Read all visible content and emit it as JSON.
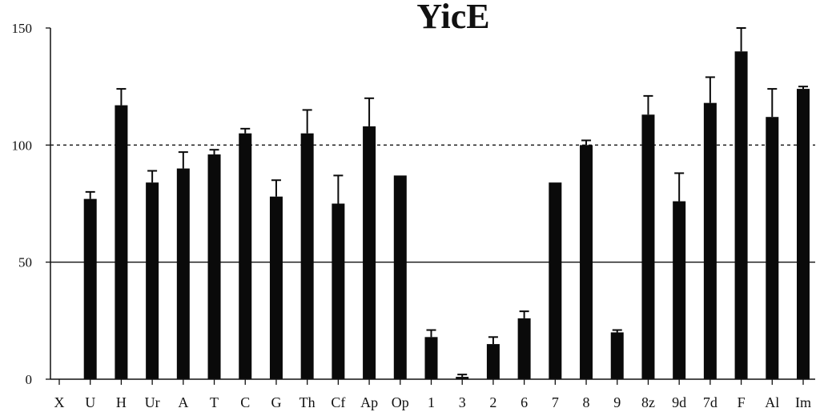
{
  "chart_data": {
    "type": "bar",
    "title": "YicE",
    "xlabel": "",
    "ylabel": "",
    "ylim": [
      0,
      150
    ],
    "yticks": [
      0,
      50,
      100,
      150
    ],
    "grid": false,
    "legend": "none",
    "reference_lines": [
      {
        "value": 100,
        "style": "dashed"
      },
      {
        "value": 50,
        "style": "solid"
      }
    ],
    "categories": [
      "X",
      "U",
      "H",
      "Ur",
      "A",
      "T",
      "C",
      "G",
      "Th",
      "Cf",
      "Ap",
      "Op",
      "1",
      "3",
      "2",
      "6",
      "7",
      "8",
      "9",
      "8z",
      "9d",
      "7d",
      "F",
      "Al",
      "Im"
    ],
    "values": [
      0,
      77,
      117,
      84,
      90,
      96,
      105,
      78,
      105,
      75,
      108,
      87,
      18,
      1,
      15,
      26,
      84,
      100,
      20,
      113,
      76,
      118,
      140,
      112,
      124
    ],
    "errors": [
      0,
      3,
      7,
      5,
      7,
      2,
      2,
      7,
      10,
      12,
      12,
      0,
      3,
      1,
      3,
      3,
      0,
      2,
      1,
      8,
      12,
      11,
      10,
      12,
      1
    ],
    "colors": {
      "bar": "#0a0a0a",
      "axis": "#111111",
      "background": "#ffffff"
    }
  }
}
